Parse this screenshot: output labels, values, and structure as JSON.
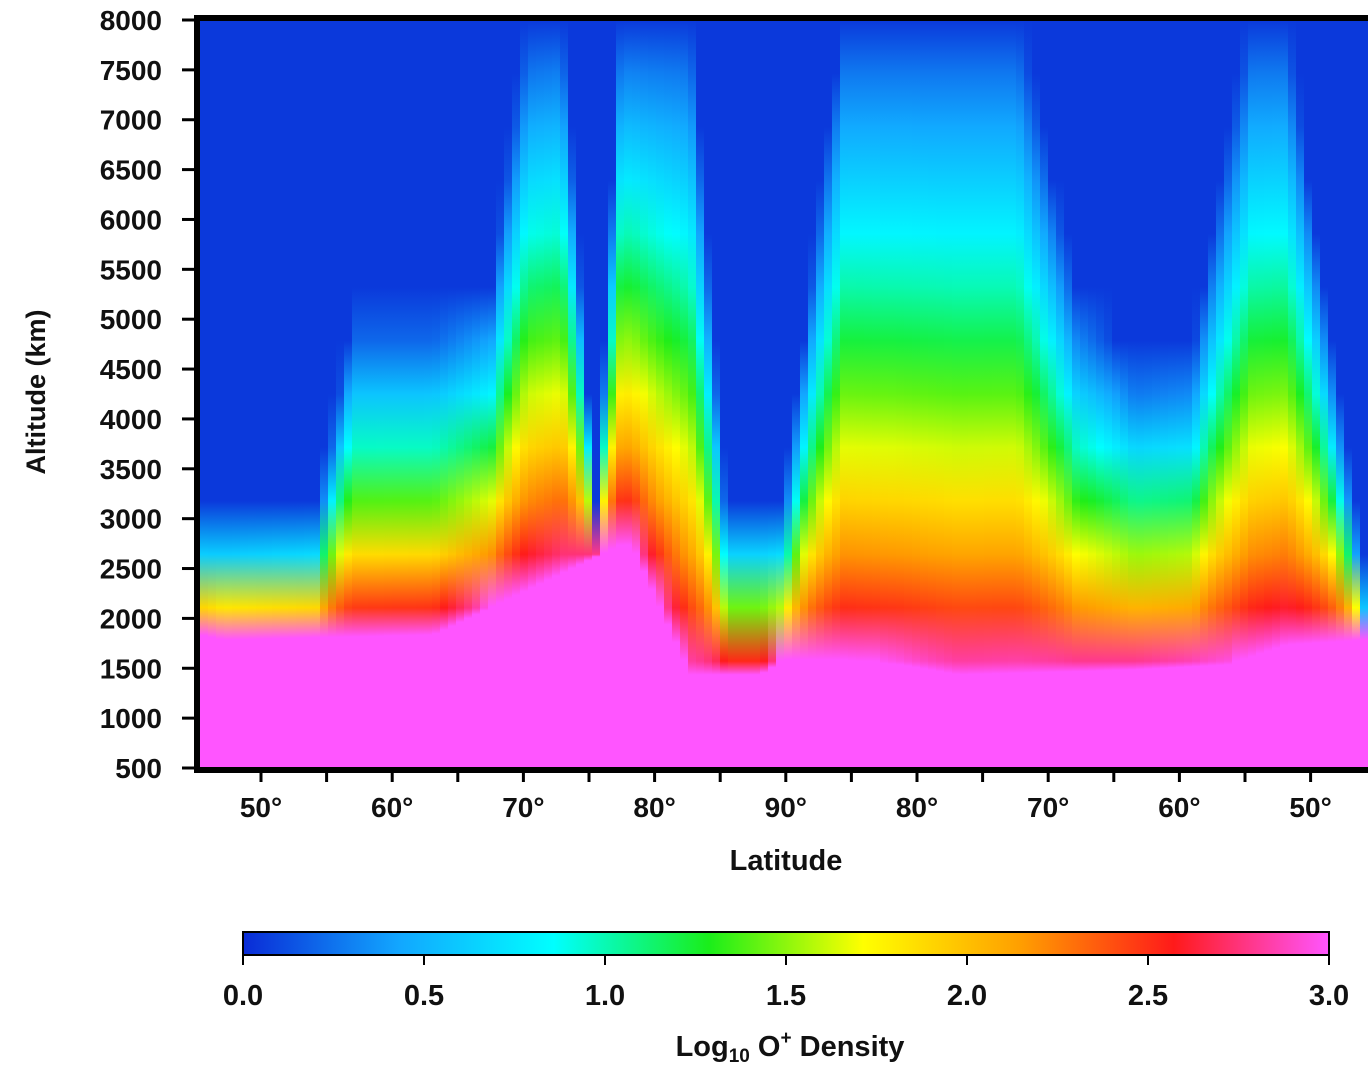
{
  "chart_data": {
    "type": "heatmap",
    "title": "",
    "xlabel": "Latitude",
    "ylabel": "Altitude (km)",
    "ylim": [
      500,
      8000
    ],
    "y_ticks": [
      "8000",
      "7500",
      "7000",
      "6500",
      "6000",
      "5500",
      "5000",
      "4500",
      "4000",
      "3500",
      "3000",
      "2500",
      "2000",
      "1500",
      "1000",
      "500"
    ],
    "x_tick_labels": [
      "50°",
      "60°",
      "70°",
      "80°",
      "90°",
      "80°",
      "70°",
      "60°",
      "50°"
    ],
    "x_note": "latitude path runs 45° to 90° (pole) and back down to 45°",
    "colorbar": {
      "label_prefix": "Log",
      "label_subscript": "10",
      "label_species": " O",
      "label_superscript": "+",
      "label_suffix": " Density",
      "range": [
        0.0,
        3.0
      ],
      "ticks": [
        "0.0",
        "0.5",
        "1.0",
        "1.5",
        "2.0",
        "2.5",
        "3.0"
      ],
      "colormap": [
        "#0a2bd6",
        "#12a6ff",
        "#00ffff",
        "#1aee1a",
        "#ffff00",
        "#ffa000",
        "#ff1a1a",
        "#ff55ff"
      ]
    },
    "base_profile": {
      "description": "altitude (km) where log10 O+ density reaches 3.0 along the track",
      "pos": [
        0,
        0.02,
        0.2,
        0.36,
        0.37,
        0.42,
        0.48,
        0.5,
        0.55,
        0.6,
        0.65,
        0.8,
        0.88,
        0.93,
        1.0
      ],
      "alt": [
        1850,
        1800,
        1850,
        2750,
        2750,
        1450,
        1450,
        1600,
        1600,
        1550,
        1450,
        1500,
        1550,
        1750,
        1800
      ]
    },
    "density_bands": {
      "description": "approx altitude (km) at which log10 O+ density drops to 0.3 (upper boundary of enhanced plasma)",
      "pos": [
        0,
        0.1,
        0.13,
        0.2,
        0.25,
        0.28,
        0.31,
        0.34,
        0.36,
        0.38,
        0.42,
        0.45,
        0.5,
        0.55,
        0.6,
        0.65,
        0.7,
        0.75,
        0.8,
        0.85,
        0.9,
        0.93,
        1.0
      ],
      "alt": [
        2900,
        2950,
        4950,
        4950,
        5300,
        7900,
        8000,
        2900,
        8000,
        8000,
        8000,
        3050,
        3050,
        8000,
        8000,
        8000,
        8000,
        5200,
        4500,
        4600,
        8000,
        8000,
        1900
      ]
    }
  }
}
